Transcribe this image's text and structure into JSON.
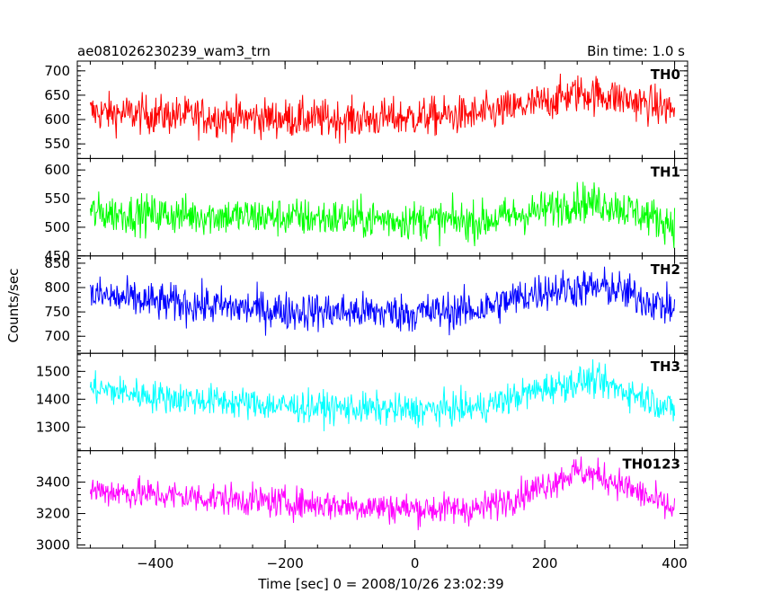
{
  "chart_data": {
    "type": "line",
    "title": "ae081026230239_wam3_trn",
    "bin_time_label": "Bin time: 1.0 s",
    "xlabel": "Time [sec] 0 = 2008/10/26 23:02:39",
    "ylabel": "Counts/sec",
    "xlim": [
      -520,
      420
    ],
    "xticks": [
      -400,
      -200,
      0,
      200,
      400
    ],
    "xtick_labels": [
      "−400",
      "−200",
      "0",
      "200",
      "400"
    ],
    "x_start": -500,
    "x_end": 400,
    "x_step": 1,
    "panels": [
      {
        "name": "TH0",
        "color": "#ff0000",
        "ylim": [
          520,
          720
        ],
        "yticks": [
          550,
          600,
          650,
          700
        ],
        "ytick_labels": [
          "550",
          "600",
          "650",
          "700"
        ],
        "noise": 28,
        "trend": [
          [
            -500,
            615
          ],
          [
            -300,
            605
          ],
          [
            -100,
            600
          ],
          [
            100,
            610
          ],
          [
            200,
            635
          ],
          [
            250,
            655
          ],
          [
            300,
            648
          ],
          [
            400,
            620
          ]
        ]
      },
      {
        "name": "TH1",
        "color": "#00ff00",
        "ylim": [
          450,
          620
        ],
        "yticks": [
          450,
          500,
          550,
          600
        ],
        "ytick_labels": [
          "450",
          "500",
          "550",
          "600"
        ],
        "noise": 24,
        "trend": [
          [
            -500,
            525
          ],
          [
            -300,
            520
          ],
          [
            -100,
            515
          ],
          [
            100,
            510
          ],
          [
            200,
            530
          ],
          [
            250,
            545
          ],
          [
            300,
            540
          ],
          [
            400,
            505
          ]
        ]
      },
      {
        "name": "TH2",
        "color": "#0000ff",
        "ylim": [
          665,
          865
        ],
        "yticks": [
          700,
          750,
          800,
          850
        ],
        "ytick_labels": [
          "700",
          "750",
          "800",
          "850"
        ],
        "noise": 28,
        "trend": [
          [
            -500,
            785
          ],
          [
            -400,
            770
          ],
          [
            -200,
            752
          ],
          [
            0,
            748
          ],
          [
            100,
            755
          ],
          [
            200,
            795
          ],
          [
            300,
            800
          ],
          [
            400,
            755
          ]
        ]
      },
      {
        "name": "TH3",
        "color": "#00ffff",
        "ylim": [
          1215,
          1565
        ],
        "yticks": [
          1300,
          1400,
          1500
        ],
        "ytick_labels": [
          "1300",
          "1400",
          "1500"
        ],
        "noise": 40,
        "trend": [
          [
            -500,
            1440
          ],
          [
            -400,
            1410
          ],
          [
            -200,
            1375
          ],
          [
            0,
            1360
          ],
          [
            100,
            1370
          ],
          [
            200,
            1440
          ],
          [
            270,
            1470
          ],
          [
            350,
            1410
          ],
          [
            400,
            1360
          ]
        ]
      },
      {
        "name": "TH0123",
        "color": "#ff00ff",
        "ylim": [
          2980,
          3600
        ],
        "yticks": [
          3000,
          3200,
          3400
        ],
        "ytick_labels": [
          "3000",
          "3200",
          "3400"
        ],
        "noise": 70,
        "trend": [
          [
            -500,
            3350
          ],
          [
            -400,
            3320
          ],
          [
            -200,
            3270
          ],
          [
            0,
            3230
          ],
          [
            100,
            3230
          ],
          [
            170,
            3330
          ],
          [
            250,
            3470
          ],
          [
            300,
            3420
          ],
          [
            350,
            3320
          ],
          [
            400,
            3220
          ]
        ]
      }
    ],
    "grid": false,
    "legend": "none"
  }
}
